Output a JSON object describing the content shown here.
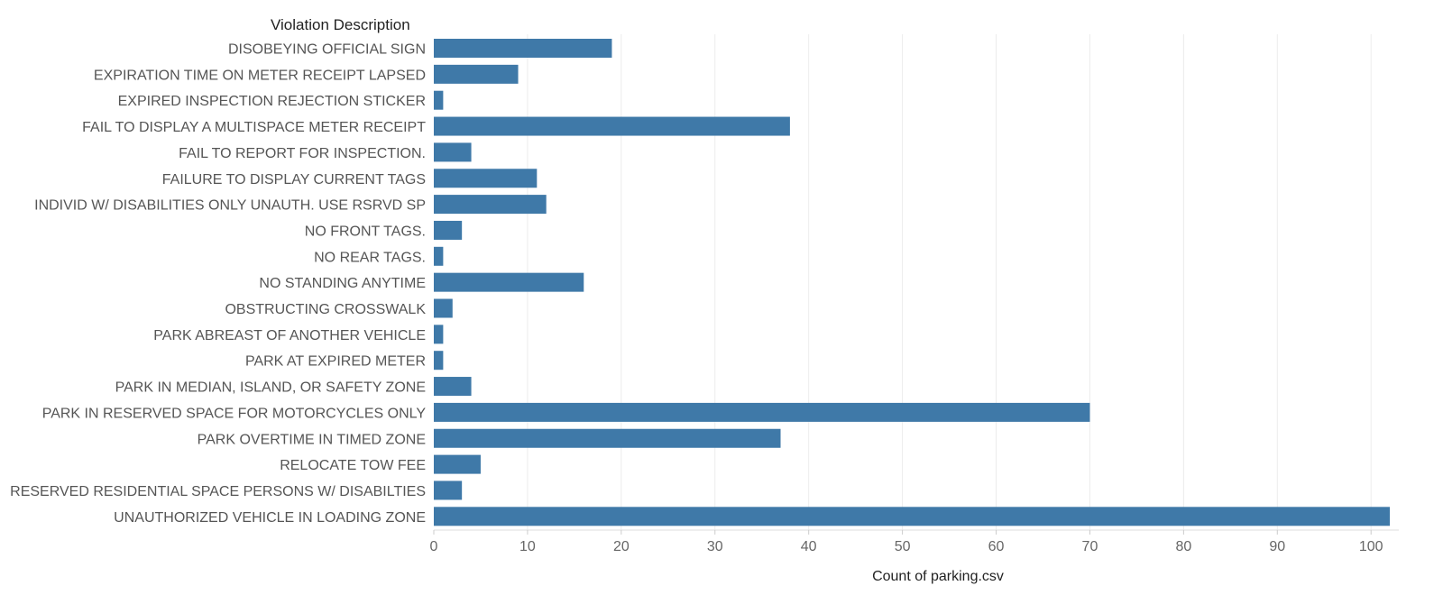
{
  "chart_data": {
    "type": "bar",
    "orientation": "horizontal",
    "y_header": "Violation Description",
    "xlabel": "Count of parking.csv",
    "categories": [
      "DISOBEYING OFFICIAL SIGN",
      "EXPIRATION TIME ON METER RECEIPT LAPSED",
      "EXPIRED INSPECTION REJECTION STICKER",
      "FAIL TO DISPLAY A MULTISPACE METER RECEIPT",
      "FAIL TO REPORT FOR INSPECTION.",
      "FAILURE TO DISPLAY CURRENT TAGS",
      "INDIVID W/ DISABILITIES ONLY UNAUTH. USE RSRVD SP",
      "NO FRONT TAGS.",
      "NO REAR TAGS.",
      "NO STANDING ANYTIME",
      "OBSTRUCTING CROSSWALK",
      "PARK ABREAST OF ANOTHER VEHICLE",
      "PARK AT EXPIRED METER",
      "PARK IN MEDIAN, ISLAND, OR SAFETY ZONE",
      "PARK IN RESERVED SPACE FOR MOTORCYCLES ONLY",
      "PARK OVERTIME IN TIMED ZONE",
      "RELOCATE TOW FEE",
      "RESERVED RESIDENTIAL SPACE PERSONS W/ DISABILTIES",
      "UNAUTHORIZED VEHICLE IN LOADING ZONE"
    ],
    "values": [
      19,
      9,
      1,
      38,
      4,
      11,
      12,
      3,
      1,
      16,
      2,
      1,
      1,
      4,
      70,
      37,
      5,
      3,
      102
    ],
    "xlim": [
      0,
      102
    ],
    "xticks": [
      0,
      10,
      20,
      30,
      40,
      50,
      60,
      70,
      80,
      90,
      100
    ],
    "bar_color": "#3f79a8",
    "grid": true
  }
}
